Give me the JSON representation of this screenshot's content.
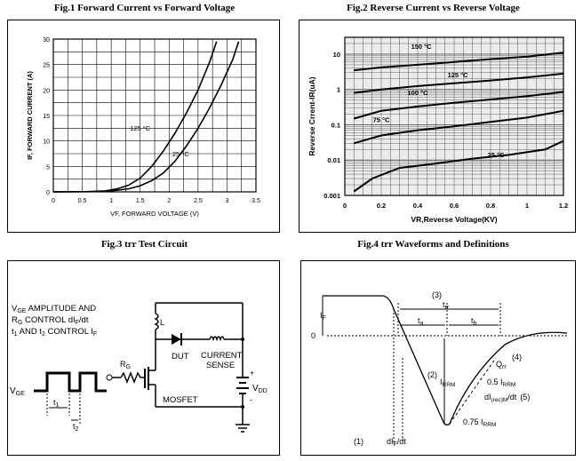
{
  "figures": {
    "fig1_title": "Fig.1  Forward Current vs Forward Voltage",
    "fig2_title": "Fig.2  Reverse Current vs Reverse Voltage",
    "fig3_title": "Fig.3  trr Test Circuit",
    "fig4_title": "Fig.4 trr Waveforms and Definitions"
  },
  "chart_data": [
    {
      "type": "line",
      "title": "Forward Current vs Forward Voltage",
      "xlabel": "VF, FORWARD VOLTAGE (V)",
      "ylabel": "IF, FORWARD CURRENT (A)",
      "xlim": [
        0,
        3.5
      ],
      "ylim": [
        0,
        30
      ],
      "xticks": [
        "0",
        "0.5",
        "1",
        "1.5",
        "2",
        "2.5",
        "3",
        "3.5"
      ],
      "yticks": [
        "0",
        "5",
        "10",
        "15",
        "20",
        "25",
        "30"
      ],
      "grid": true,
      "series": [
        {
          "name": "125 °C",
          "x": [
            0.0,
            0.6,
            0.9,
            1.1,
            1.3,
            1.5,
            1.7,
            1.9,
            2.1,
            2.3,
            2.5,
            2.7,
            2.82
          ],
          "y": [
            0.0,
            0.05,
            0.2,
            0.6,
            1.3,
            2.7,
            5.0,
            8.0,
            11.5,
            15.5,
            20.0,
            25.5,
            29.5
          ]
        },
        {
          "name": "25 °C",
          "x": [
            0.0,
            0.7,
            1.0,
            1.3,
            1.5,
            1.7,
            1.9,
            2.1,
            2.3,
            2.5,
            2.7,
            2.9,
            3.1,
            3.2
          ],
          "y": [
            0.0,
            0.05,
            0.2,
            0.6,
            1.2,
            2.2,
            3.7,
            6.0,
            9.0,
            12.5,
            16.5,
            21.0,
            26.0,
            29.5
          ]
        }
      ],
      "annotations": [
        {
          "text": "125 °C",
          "x": 1.5,
          "y": 12
        },
        {
          "text": "25 °C",
          "x": 2.2,
          "y": 7
        }
      ]
    },
    {
      "type": "line",
      "title": "Reverse Current vs Reverse Voltage",
      "xlabel": "VR,Reverse Voltage(KV)",
      "ylabel": "Reverse Crrent-IR(uA)",
      "xscale": "linear",
      "yscale": "log",
      "xlim": [
        0,
        1.2
      ],
      "ylim": [
        0.001,
        30
      ],
      "xticks": [
        "0",
        "0.2",
        "0.4",
        "0.6",
        "0.8",
        "1",
        "1.2"
      ],
      "yticks": [
        "0.001",
        "0.01",
        "0.1",
        "1",
        "10"
      ],
      "grid": true,
      "series": [
        {
          "name": "150 °C",
          "x": [
            0.05,
            0.2,
            0.4,
            0.6,
            0.8,
            1.0,
            1.2
          ],
          "y": [
            3.5,
            4.2,
            5.0,
            6.0,
            7.2,
            8.5,
            11.0
          ]
        },
        {
          "name": "125 °C",
          "x": [
            0.05,
            0.2,
            0.4,
            0.6,
            0.8,
            1.0,
            1.2
          ],
          "y": [
            0.8,
            1.0,
            1.25,
            1.5,
            1.8,
            2.2,
            2.8
          ]
        },
        {
          "name": "100 °C",
          "x": [
            0.05,
            0.2,
            0.4,
            0.6,
            0.8,
            1.0,
            1.2
          ],
          "y": [
            0.15,
            0.25,
            0.33,
            0.42,
            0.52,
            0.65,
            0.85
          ]
        },
        {
          "name": "75 °C",
          "x": [
            0.05,
            0.2,
            0.4,
            0.6,
            0.8,
            1.0,
            1.2
          ],
          "y": [
            0.03,
            0.05,
            0.07,
            0.09,
            0.12,
            0.16,
            0.25
          ]
        },
        {
          "name": "25 °C",
          "x": [
            0.05,
            0.15,
            0.3,
            0.5,
            0.7,
            0.9,
            1.1,
            1.2
          ],
          "y": [
            0.0013,
            0.003,
            0.006,
            0.008,
            0.011,
            0.014,
            0.02,
            0.035
          ]
        }
      ],
      "annotations": [
        {
          "text": "150 °C",
          "x": 0.42,
          "y": 14
        },
        {
          "text": "125 °C",
          "x": 0.62,
          "y": 2.2
        },
        {
          "text": "100 °C",
          "x": 0.4,
          "y": 0.7
        },
        {
          "text": "75 °C",
          "x": 0.2,
          "y": 0.12
        },
        {
          "text": "25 °C",
          "x": 0.83,
          "y": 0.012
        }
      ]
    }
  ],
  "circuit": {
    "label_vge_amp_1": "V",
    "label_vge_amp_1_sub": "GE",
    "label_vge_amp_2": " AMPLITUDE AND",
    "label_rg_1": "R",
    "label_rg_1_sub": "G",
    "label_rg_2": " CONTROL dI",
    "label_rg_2_sub": "F",
    "label_rg_3": "/dt",
    "label_t1_1": "t",
    "label_t1_sub": "1",
    "label_t1_2": " AND t",
    "label_t1_sub2": "2",
    "label_t1_3": " CONTROL I",
    "label_t1_sub3": "F",
    "inductor": "L",
    "diode": "DUT",
    "sense_1": "CURRENT",
    "sense_2": "SENSE",
    "resistor": "R",
    "resistor_sub": "G",
    "mosfet": "MOSFET",
    "vge": "V",
    "vge_sub": "GE",
    "vdd": "V",
    "vdd_sub": "DD",
    "plus": "+",
    "minus": "-",
    "t1": "t",
    "t1_sub": "1",
    "t2": "t",
    "t2_sub": "2"
  },
  "waveform": {
    "n3": "(3)",
    "trr": "t",
    "trr_sub": "rr",
    "ta": "t",
    "ta_sub": "a",
    "tb": "t",
    "tb_sub": "b",
    "if": "I",
    "if_sub": "F",
    "zero": "0",
    "n2": "(2)",
    "irrm": "I",
    "irrm_sub": "RRM",
    "n4": "(4)",
    "qrr": "Q",
    "qrr_sub": "rr",
    "half_irrm": "0.5 I",
    "half_irrm_sub": "RRM",
    "dirrm": "dI",
    "dirrm_sub": "(rec)M",
    "dirrm_tail": "/dt",
    "n5": "(5)",
    "q_irrm": "0.75 I",
    "q_irrm_sub": "RRM",
    "n1": "(1)",
    "dif": "dI",
    "dif_sub": "F",
    "dif_tail": "/dt"
  }
}
